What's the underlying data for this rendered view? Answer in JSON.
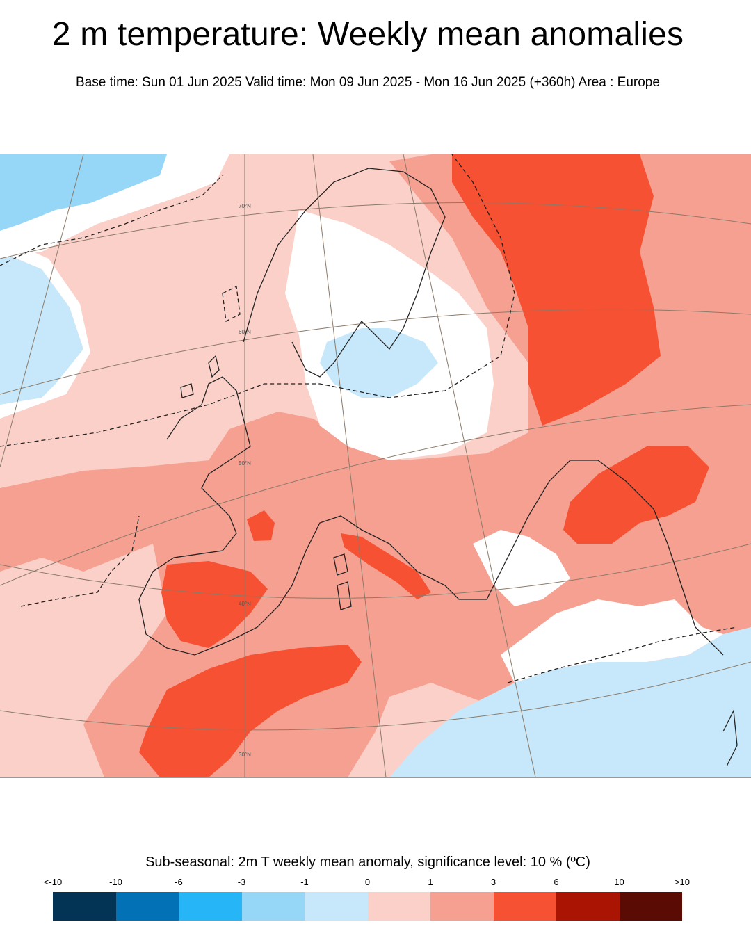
{
  "header": {
    "title": "2 m temperature: Weekly mean anomalies",
    "subtitle": "Base time: Sun 01 Jun 2025 Valid time: Mon 09 Jun 2025 - Mon 16 Jun 2025 (+360h) Area : Europe"
  },
  "map": {
    "area": "Europe",
    "latitude_labels": [
      "70°N",
      "60°N",
      "50°N",
      "40°N",
      "30°N"
    ],
    "fill_colors": {
      "below_minus3": "#96d6f7",
      "minus3_to_minus1": "#c7e8fa",
      "near_zero": "#ffffff",
      "zero_to_1": "#fbd0c8",
      "one_to_3": "#f6a091",
      "three_to_6": "#f65132"
    }
  },
  "legend": {
    "title": "Sub-seasonal: 2m T weekly mean anomaly, significance level: 10 % (ºC)",
    "ticks": [
      "<-10",
      "-10",
      "-6",
      "-3",
      "-1",
      "0",
      "1",
      "3",
      "6",
      "10",
      ">10"
    ],
    "colors": [
      "#033456",
      "#0271b5",
      "#26b5f6",
      "#96d6f7",
      "#c7e8fa",
      "#fbd0c8",
      "#f6a091",
      "#f65132",
      "#a91502",
      "#5a0b03"
    ]
  }
}
